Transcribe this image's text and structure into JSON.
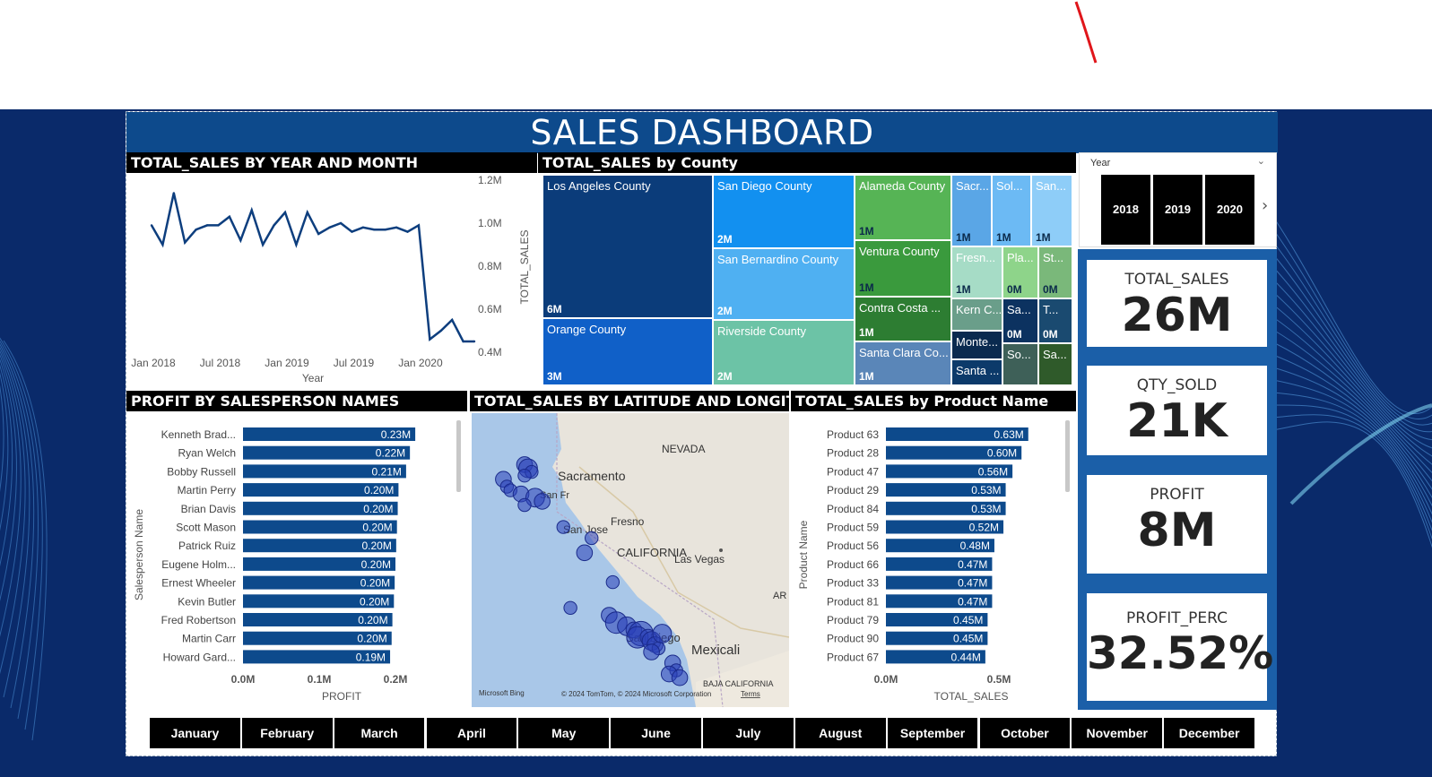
{
  "dashboard": {
    "title": "SALES DASHBOARD"
  },
  "colors": {
    "brand": "#0d4a8c",
    "bar": "#0d4a8c",
    "line": "#0d3e7e"
  },
  "year_slicer": {
    "label": "Year",
    "years": [
      "2018",
      "2019",
      "2020"
    ]
  },
  "kpis": [
    {
      "label": "TOTAL_SALES",
      "value": "26M"
    },
    {
      "label": "QTY_SOLD",
      "value": "21K"
    },
    {
      "label": "PROFIT",
      "value": "8M"
    },
    {
      "label": "PROFIT_PERC",
      "value": "32.52%"
    }
  ],
  "months": [
    "January",
    "February",
    "March",
    "April",
    "May",
    "June",
    "July",
    "August",
    "September",
    "October",
    "November",
    "December"
  ],
  "line_panel": {
    "title": "TOTAL_SALES BY YEAR AND MONTH"
  },
  "treemap_panel": {
    "title": "TOTAL_SALES by County"
  },
  "profit_panel": {
    "title": "PROFIT BY SALESPERSON NAMES"
  },
  "map_panel": {
    "title": "TOTAL_SALES BY LATITUDE AND LONGITUDE",
    "labels": [
      "NEVADA",
      "Sacramento",
      "San Fr",
      "Fresno",
      "San Jose",
      "CALIFORNIA",
      "Las Vegas",
      "AR",
      "San Diego",
      "Mexicali",
      "BAJA CALIFORNIA"
    ],
    "attribution": "© 2024 TomTom, © 2024 Microsoft Corporation",
    "terms": "Terms",
    "bing": "Microsoft Bing"
  },
  "product_panel": {
    "title": "TOTAL_SALES by Product Name"
  },
  "chart_data": [
    {
      "type": "line",
      "title": "TOTAL_SALES BY YEAR AND MONTH",
      "xlabel": "Year",
      "ylabel": "TOTAL_SALES",
      "x_ticks": [
        "Jan 2018",
        "Jul 2018",
        "Jan 2019",
        "Jul 2019",
        "Jan 2020"
      ],
      "y_ticks": [
        "1.2M",
        "1.0M",
        "0.8M",
        "0.6M",
        "0.4M"
      ],
      "ylim": [
        0.4,
        1.2
      ],
      "series": [
        {
          "values": [
            0.99,
            0.9,
            1.14,
            0.91,
            0.97,
            0.99,
            0.99,
            1.03,
            0.92,
            1.06,
            0.9,
            0.99,
            1.05,
            0.9,
            1.05,
            0.95,
            0.98,
            1.0,
            0.96,
            0.98,
            0.97,
            0.97,
            0.98,
            0.96,
            0.99,
            0.46,
            0.5,
            0.55,
            0.45,
            0.45
          ]
        }
      ]
    },
    {
      "type": "treemap",
      "title": "TOTAL_SALES by County",
      "items": [
        {
          "name": "Los Angeles County",
          "value": "6M"
        },
        {
          "name": "Orange County",
          "value": "3M"
        },
        {
          "name": "San Diego County",
          "value": "2M"
        },
        {
          "name": "San Bernardino County",
          "value": "2M"
        },
        {
          "name": "Riverside County",
          "value": "2M"
        },
        {
          "name": "Alameda County",
          "value": "1M"
        },
        {
          "name": "Ventura County",
          "value": "1M"
        },
        {
          "name": "Contra Costa ...",
          "value": "1M"
        },
        {
          "name": "Santa Clara Co...",
          "value": "1M"
        },
        {
          "name": "Sacr...",
          "value": "1M"
        },
        {
          "name": "Sol...",
          "value": "1M"
        },
        {
          "name": "San...",
          "value": "1M"
        },
        {
          "name": "Fresn...",
          "value": "1M"
        },
        {
          "name": "Pla...",
          "value": "0M"
        },
        {
          "name": "St...",
          "value": "0M"
        },
        {
          "name": "Kern C...",
          "value": ""
        },
        {
          "name": "Sa...",
          "value": "0M"
        },
        {
          "name": "T...",
          "value": "0M"
        },
        {
          "name": "Monte...",
          "value": ""
        },
        {
          "name": "Santa ...",
          "value": ""
        },
        {
          "name": "So...",
          "value": ""
        },
        {
          "name": "Sa...",
          "value": ""
        }
      ]
    },
    {
      "type": "bar",
      "title": "PROFIT BY SALESPERSON NAMES",
      "xlabel": "PROFIT",
      "ylabel": "Salesperson Name",
      "x_ticks": [
        "0.0M",
        "0.1M",
        "0.2M"
      ],
      "xlim": [
        0,
        0.2
      ],
      "categories": [
        "Kenneth Brad...",
        "Ryan Welch",
        "Bobby Russell",
        "Martin Perry",
        "Brian Davis",
        "Scott Mason",
        "Patrick Ruiz",
        "Eugene Holm...",
        "Ernest Wheeler",
        "Kevin Butler",
        "Fred Robertson",
        "Martin Carr",
        "Howard Gard..."
      ],
      "values": [
        0.226,
        0.219,
        0.214,
        0.204,
        0.203,
        0.202,
        0.201,
        0.2,
        0.199,
        0.198,
        0.196,
        0.195,
        0.193
      ],
      "value_labels": [
        "0.23M",
        "0.22M",
        "0.21M",
        "0.20M",
        "0.20M",
        "0.20M",
        "0.20M",
        "0.20M",
        "0.20M",
        "0.20M",
        "0.20M",
        "0.20M",
        "0.19M"
      ]
    },
    {
      "type": "scatter",
      "title": "TOTAL_SALES BY LATITUDE AND LONGITUDE",
      "x": [
        -121.5,
        -121.4,
        -121.3,
        -121.5,
        -122.1,
        -122.0,
        -121.9,
        -121.6,
        -121.2,
        -121.5,
        -121.0,
        -120.4,
        -119.6,
        -119.8,
        -119.0,
        -120.2,
        -119.1,
        -118.9,
        -118.6,
        -118.4,
        -118.2,
        -118.3,
        -118.0,
        -117.9,
        -117.8,
        -117.7,
        -117.9,
        -117.6,
        -117.3,
        -117.2,
        -117.4,
        -117.1
      ],
      "y": [
        38.6,
        38.5,
        38.4,
        38.3,
        38.2,
        38.0,
        37.9,
        37.8,
        37.7,
        37.5,
        37.6,
        36.9,
        36.6,
        36.2,
        35.4,
        34.7,
        34.5,
        34.3,
        34.2,
        34.1,
        34.0,
        33.9,
        33.9,
        33.8,
        33.7,
        33.6,
        33.5,
        34.0,
        33.2,
        33.0,
        32.9,
        32.8
      ],
      "sizes": [
        3,
        4,
        2,
        2,
        3,
        2,
        2,
        3,
        4,
        2,
        3,
        2,
        2,
        3,
        2,
        2,
        3,
        5,
        4,
        3,
        6,
        5,
        3,
        4,
        3,
        2,
        3,
        4,
        3,
        2,
        3,
        3
      ]
    },
    {
      "type": "bar",
      "title": "TOTAL_SALES by Product Name",
      "xlabel": "TOTAL_SALES",
      "ylabel": "Product Name",
      "x_ticks": [
        "0.0M",
        "0.5M"
      ],
      "xlim": [
        0,
        0.5
      ],
      "categories": [
        "Product 63",
        "Product 28",
        "Product 47",
        "Product 29",
        "Product 84",
        "Product 59",
        "Product 56",
        "Product 66",
        "Product 33",
        "Product 81",
        "Product 79",
        "Product 90",
        "Product 67"
      ],
      "values": [
        0.63,
        0.6,
        0.56,
        0.53,
        0.53,
        0.52,
        0.48,
        0.47,
        0.47,
        0.47,
        0.45,
        0.45,
        0.44
      ],
      "value_labels": [
        "0.63M",
        "0.60M",
        "0.56M",
        "0.53M",
        "0.53M",
        "0.52M",
        "0.48M",
        "0.47M",
        "0.47M",
        "0.47M",
        "0.45M",
        "0.45M",
        "0.44M"
      ]
    }
  ]
}
